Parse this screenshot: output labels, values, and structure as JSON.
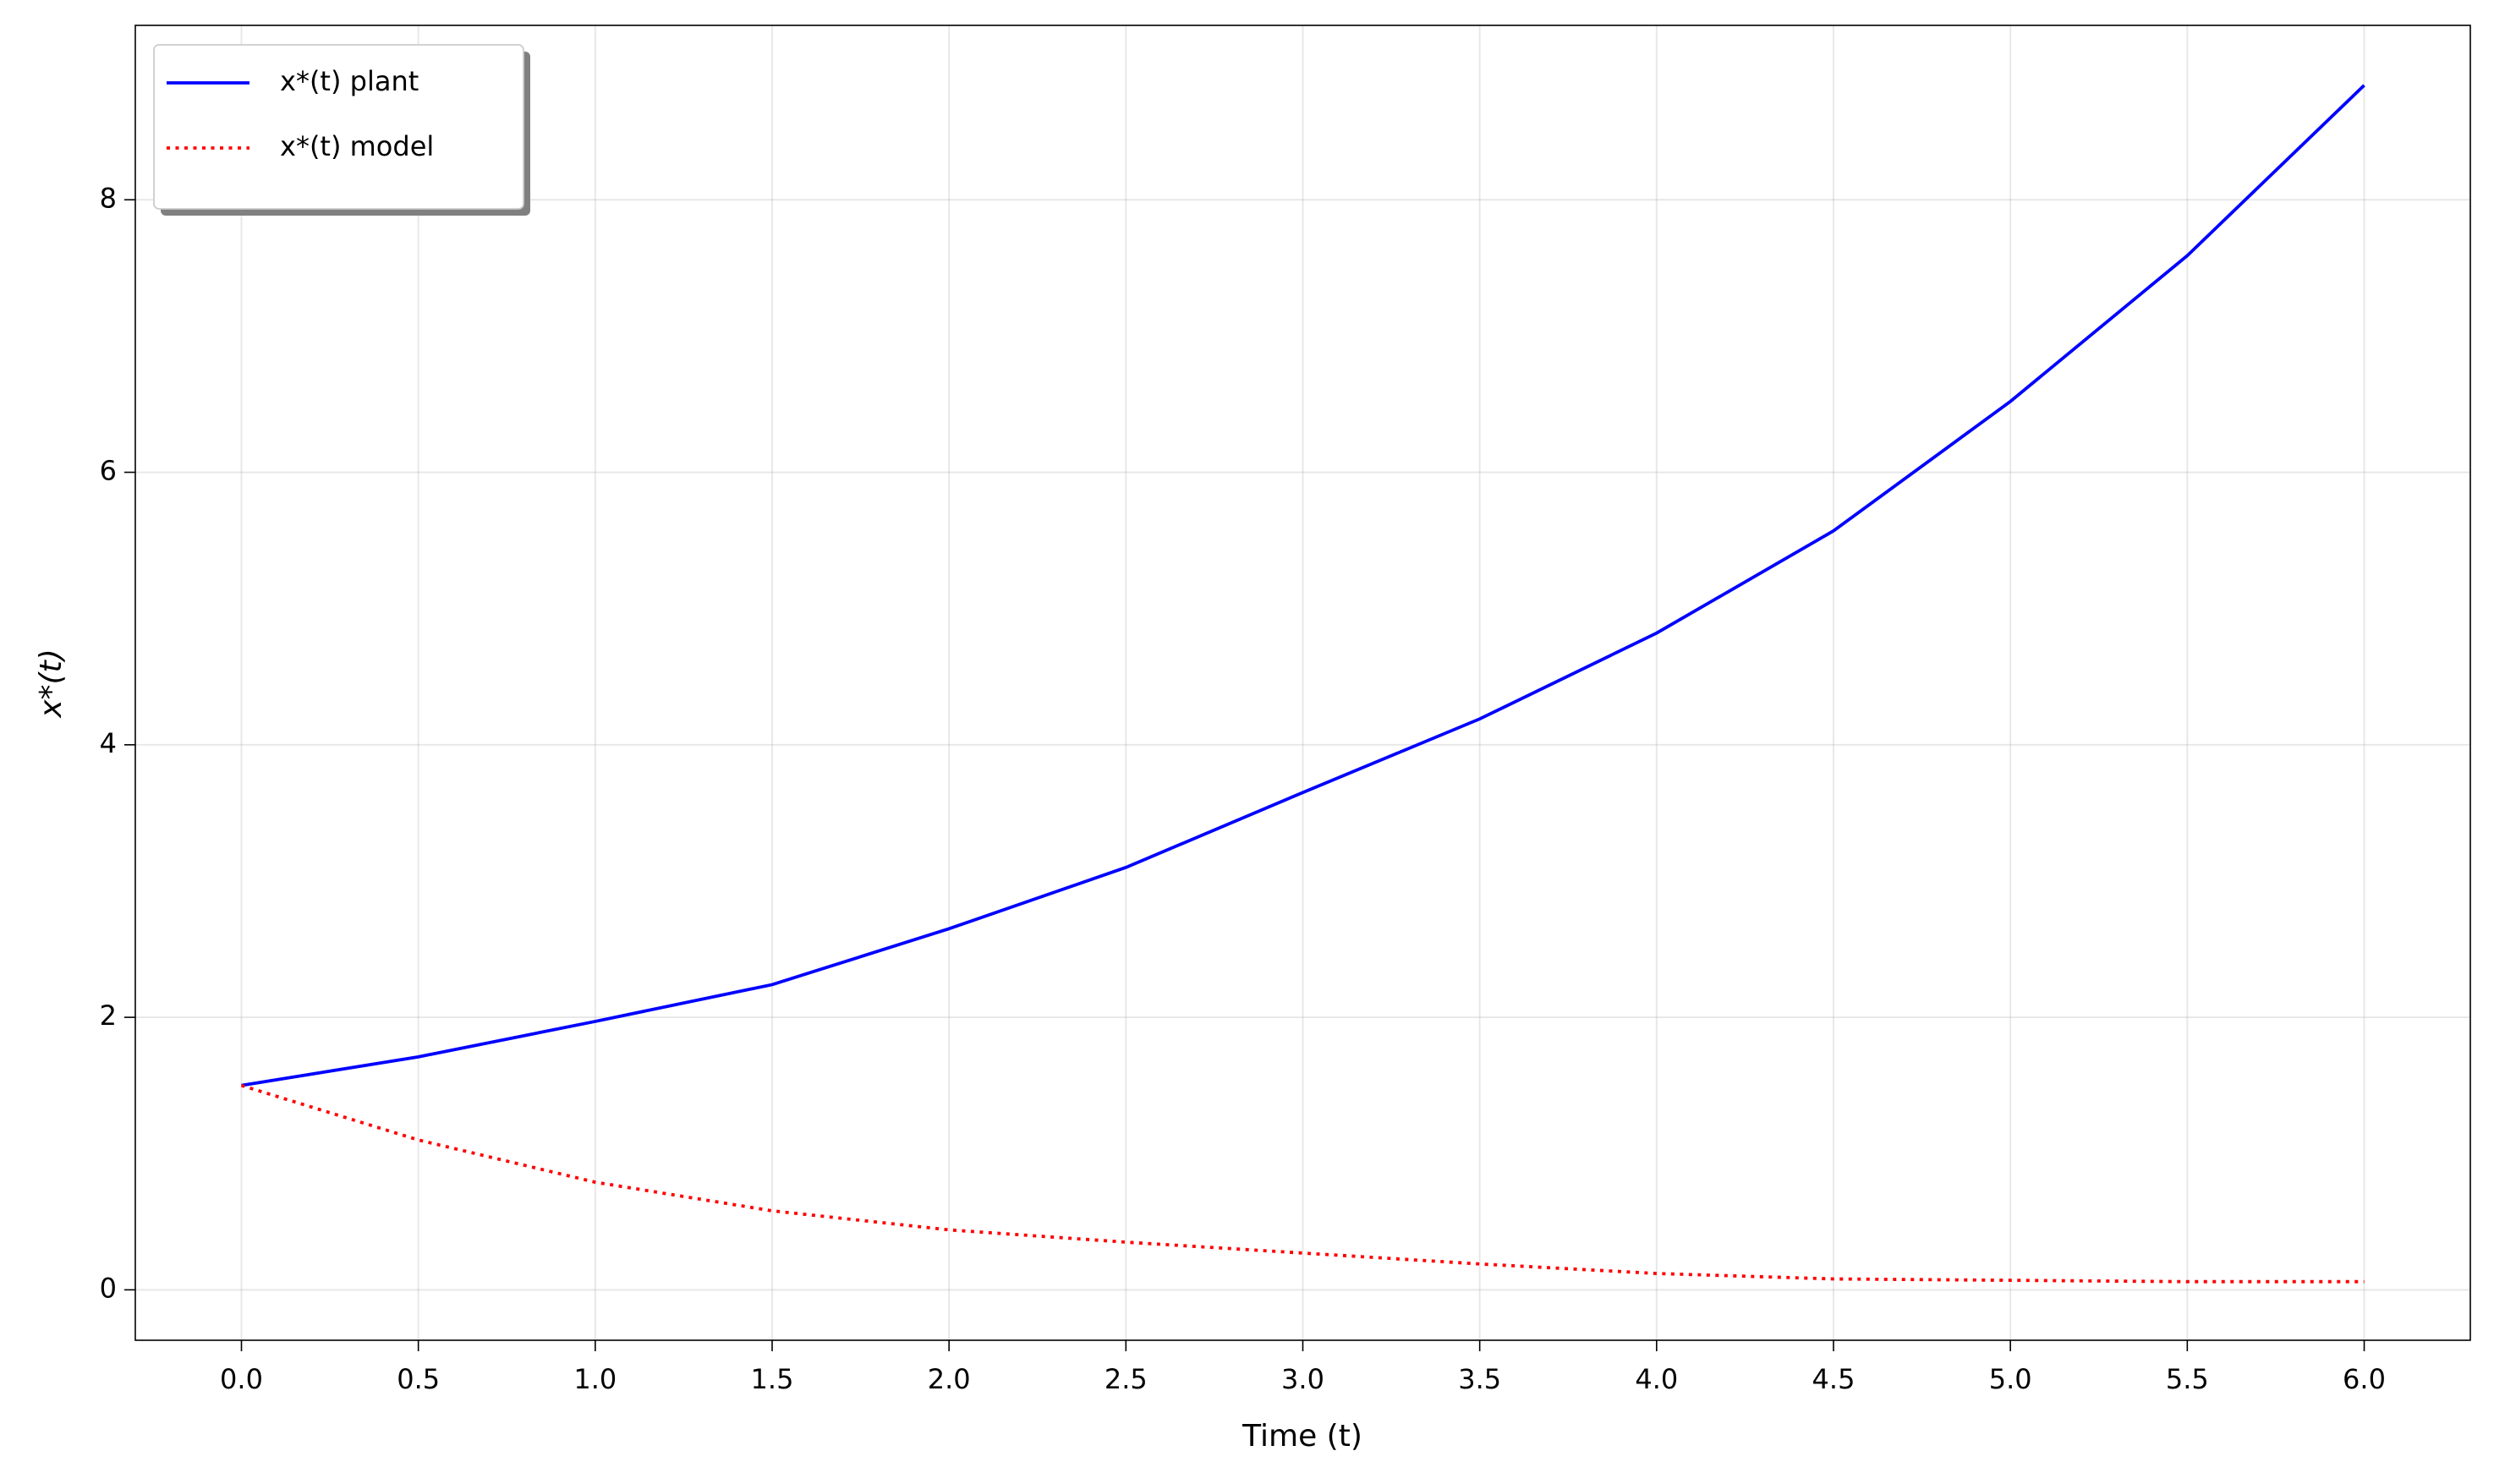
{
  "chart_data": {
    "type": "line",
    "xlabel": "Time (t)",
    "ylabel": "x*(t)",
    "x": [
      0,
      0.5,
      1.0,
      1.5,
      2.0,
      2.5,
      3.0,
      3.5,
      4.0,
      4.5,
      5.0,
      5.5,
      6.0
    ],
    "series": [
      {
        "name": "x*(t) plant",
        "color": "#0000ff",
        "linestyle": "solid",
        "values": [
          1.5,
          1.71,
          1.97,
          2.24,
          2.65,
          3.1,
          3.65,
          4.19,
          4.82,
          5.57,
          6.52,
          7.59,
          8.84
        ]
      },
      {
        "name": "x*(t) model",
        "color": "#ff0000",
        "linestyle": "dotted",
        "values": [
          1.5,
          1.1,
          0.79,
          0.58,
          0.44,
          0.35,
          0.27,
          0.19,
          0.12,
          0.08,
          0.07,
          0.06,
          0.06
        ]
      }
    ],
    "xlim": [
      -0.3,
      6.3
    ],
    "ylim": [
      -0.37,
      9.28
    ],
    "xticks": [
      {
        "value": 0,
        "label": "0.0"
      },
      {
        "value": 0.5,
        "label": "0.5"
      },
      {
        "value": 1,
        "label": "1.0"
      },
      {
        "value": 1.5,
        "label": "1.5"
      },
      {
        "value": 2,
        "label": "2.0"
      },
      {
        "value": 2.5,
        "label": "2.5"
      },
      {
        "value": 3,
        "label": "3.0"
      },
      {
        "value": 3.5,
        "label": "3.5"
      },
      {
        "value": 4,
        "label": "4.0"
      },
      {
        "value": 4.5,
        "label": "4.5"
      },
      {
        "value": 5,
        "label": "5.0"
      },
      {
        "value": 5.5,
        "label": "5.5"
      },
      {
        "value": 6,
        "label": "6.0"
      }
    ],
    "yticks": [
      0,
      2,
      4,
      6,
      8
    ],
    "grid": true,
    "legend": "upper left"
  }
}
